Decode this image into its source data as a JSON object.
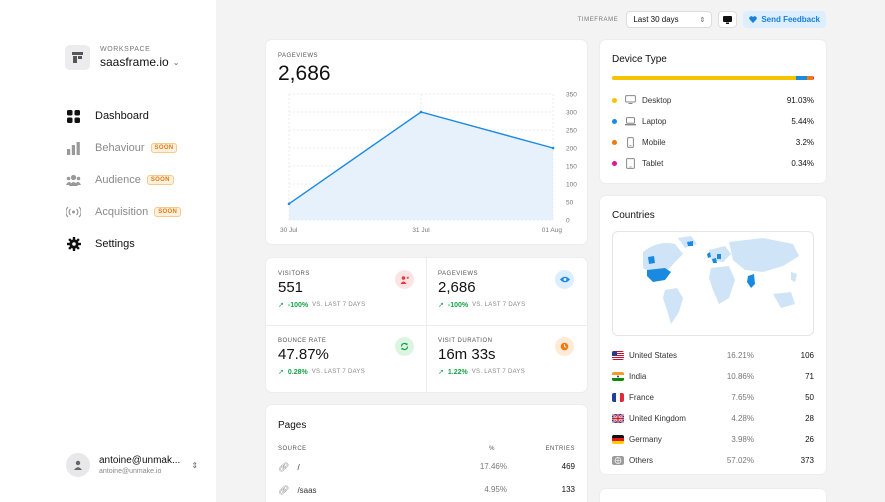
{
  "workspace": {
    "label": "WORKSPACE",
    "name": "saasframe.io"
  },
  "nav": {
    "dashboard": "Dashboard",
    "behaviour": "Behaviour",
    "audience": "Audience",
    "acquisition": "Acquisition",
    "settings": "Settings",
    "soon": "SOON"
  },
  "user": {
    "name": "antoine@unmak...",
    "email": "antoine@unmake.io"
  },
  "topbar": {
    "timeframe_label": "TIMEFRAME",
    "timeframe_value": "Last 30 days",
    "feedback": "Send Feedback"
  },
  "pageviews": {
    "label": "PAGEVIEWS",
    "value": "2,686",
    "chart_data": {
      "type": "area",
      "x": [
        "30 Jul",
        "31 Jul",
        "01 Aug"
      ],
      "values": [
        45,
        300,
        200
      ],
      "ylim": [
        0,
        350
      ],
      "yticks": [
        "0",
        "50",
        "100",
        "150",
        "200",
        "250",
        "300",
        "350"
      ],
      "grid": true,
      "color": "#1a8ae0"
    }
  },
  "stats": {
    "visitors": {
      "label": "VISITORS",
      "value": "551",
      "delta": "-100%",
      "vs": "VS. LAST 7 DAYS"
    },
    "pageviews": {
      "label": "PAGEVIEWS",
      "value": "2,686",
      "delta": "-100%",
      "vs": "VS. LAST 7 DAYS"
    },
    "bounce": {
      "label": "BOUNCE RATE",
      "value": "47.87%",
      "delta": "0.28%",
      "vs": "VS. LAST 7 DAYS"
    },
    "duration": {
      "label": "VISIT DURATION",
      "value": "16m 33s",
      "delta": "1.22%",
      "vs": "VS. LAST 7 DAYS"
    }
  },
  "pages": {
    "title": "Pages",
    "headers": {
      "source": "SOURCE",
      "pct": "%",
      "entries": "ENTRIES"
    },
    "rows": [
      {
        "source": "/",
        "pct": "17.46%",
        "entries": "469"
      },
      {
        "source": "/saas",
        "pct": "4.95%",
        "entries": "133"
      }
    ]
  },
  "device": {
    "title": "Device Type",
    "rows": [
      {
        "name": "Desktop",
        "value": "91.03%",
        "share": 0.9103,
        "color": "#f5c400",
        "icon": "monitor-icon"
      },
      {
        "name": "Laptop",
        "value": "5.44%",
        "share": 0.0544,
        "color": "#1a8ae0",
        "icon": "laptop-icon"
      },
      {
        "name": "Mobile",
        "value": "3.2%",
        "share": 0.032,
        "color": "#f07a10",
        "icon": "mobile-icon"
      },
      {
        "name": "Tablet",
        "value": "0.34%",
        "share": 0.0034,
        "color": "#e0169a",
        "icon": "tablet-icon"
      }
    ]
  },
  "countries": {
    "title": "Countries",
    "rows": [
      {
        "name": "United States",
        "pct": "16.21%",
        "count": "106",
        "flag": "us"
      },
      {
        "name": "India",
        "pct": "10.86%",
        "count": "71",
        "flag": "in"
      },
      {
        "name": "France",
        "pct": "7.65%",
        "count": "50",
        "flag": "fr"
      },
      {
        "name": "United Kingdom",
        "pct": "4.28%",
        "count": "28",
        "flag": "gb"
      },
      {
        "name": "Germany",
        "pct": "3.98%",
        "count": "26",
        "flag": "de"
      },
      {
        "name": "Others",
        "pct": "57.02%",
        "count": "373",
        "flag": "globe"
      }
    ]
  }
}
